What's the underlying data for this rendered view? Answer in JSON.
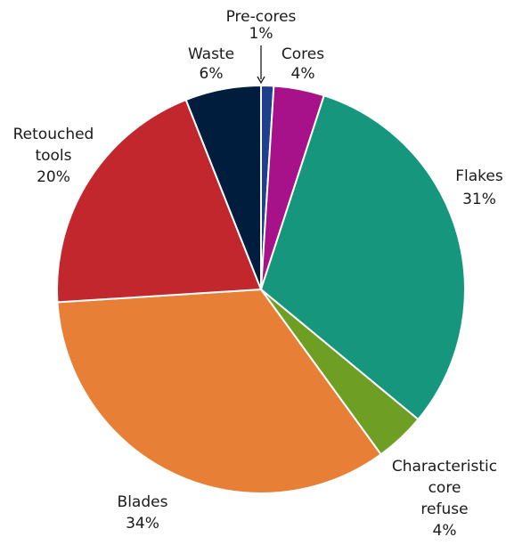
{
  "chart_data": {
    "type": "pie",
    "title": "",
    "unit": "%",
    "slices": [
      {
        "label": "Pre-cores",
        "value": 1,
        "value_label": "1%",
        "color": "#1d3f8c"
      },
      {
        "label": "Cores",
        "value": 4,
        "value_label": "4%",
        "color": "#a7128a"
      },
      {
        "label": "Flakes",
        "value": 31,
        "value_label": "31%",
        "color": "#17967e"
      },
      {
        "label": "Characteristic core refuse",
        "value": 4,
        "value_label": "4%",
        "color": "#6e9e24"
      },
      {
        "label": "Blades",
        "value": 34,
        "value_label": "34%",
        "color": "#e77f37"
      },
      {
        "label": "Retouched tools",
        "value": 20,
        "value_label": "20%",
        "color": "#c1272d"
      },
      {
        "label": "Waste",
        "value": 6,
        "value_label": "6%",
        "color": "#001d3d"
      }
    ],
    "start_angle": "12 o'clock",
    "direction": "clockwise",
    "legend": "none",
    "labels": "outside each slice; Pre-cores label uses a leader arrow"
  }
}
